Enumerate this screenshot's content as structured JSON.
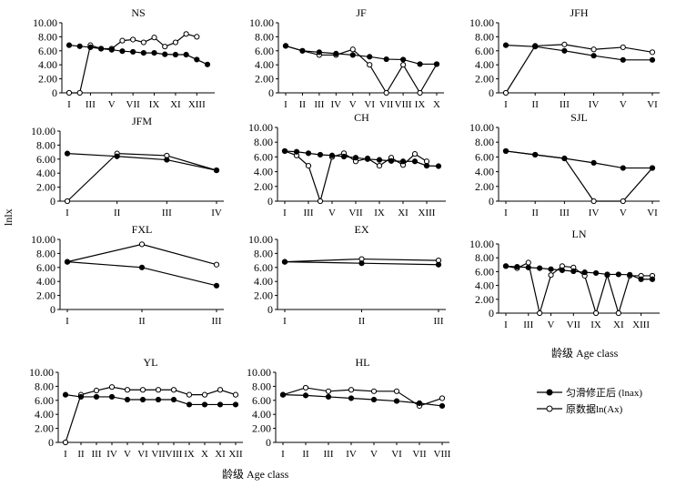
{
  "figure": {
    "ylabel": "lnlx",
    "xlabel": "龄级 Age class"
  },
  "legend": [
    {
      "key": "smoothed",
      "label": "匀滑修正后 (lnax)",
      "color": "#000000",
      "marker": "filled"
    },
    {
      "key": "raw",
      "label": "原数据ln(Ax)",
      "color": "#000000",
      "marker": "open"
    }
  ],
  "chart_data": [
    {
      "type": "line",
      "title": "NS",
      "ylim": [
        0,
        10
      ],
      "yticks": [
        "0",
        "2.00",
        "4.00",
        "6.00",
        "8.00",
        "10.00"
      ],
      "tick_labels": [
        "I",
        "III",
        "V",
        "VII",
        "IX",
        "XI",
        "XIII"
      ],
      "tick_positions": [
        1,
        3,
        5,
        7,
        9,
        11,
        13
      ],
      "x": [
        1,
        2,
        3,
        4,
        5,
        6,
        7,
        8,
        9,
        10,
        11,
        12,
        13,
        14
      ],
      "series": [
        {
          "name": "匀滑修正后 (lnax)",
          "values": [
            6.8,
            6.65,
            6.5,
            6.3,
            6.15,
            5.95,
            5.85,
            5.7,
            5.7,
            5.5,
            5.45,
            5.45,
            4.75,
            4.05
          ]
        },
        {
          "name": "原数据ln(Ax)",
          "values": [
            0,
            0,
            6.8,
            6.3,
            6.3,
            7.45,
            7.6,
            7.2,
            7.9,
            6.6,
            7.2,
            8.4,
            8.0,
            null
          ]
        }
      ]
    },
    {
      "type": "line",
      "title": "JF",
      "ylim": [
        0,
        10
      ],
      "yticks": [
        "0",
        "2.00",
        "4.00",
        "6.00",
        "8.00",
        "10.00"
      ],
      "tick_labels": [
        "I",
        "II",
        "III",
        "IV",
        "V",
        "VI",
        "VII",
        "VIII",
        "IX",
        "X"
      ],
      "tick_positions": [
        1,
        2,
        3,
        4,
        5,
        6,
        7,
        8,
        9,
        10
      ],
      "x": [
        1,
        2,
        3,
        4,
        5,
        6,
        7,
        8,
        9,
        10
      ],
      "series": [
        {
          "name": "匀滑修正后 (lnax)",
          "values": [
            6.7,
            6.0,
            5.8,
            5.6,
            5.4,
            5.15,
            4.8,
            4.75,
            4.1,
            4.1
          ]
        },
        {
          "name": "原数据ln(Ax)",
          "values": [
            6.7,
            6.0,
            5.4,
            5.4,
            6.2,
            4.0,
            0,
            4.0,
            0,
            4.1
          ]
        }
      ]
    },
    {
      "type": "line",
      "title": "JFH",
      "ylim": [
        0,
        10
      ],
      "yticks": [
        "0",
        "2.00",
        "4.00",
        "6.00",
        "8.00",
        "10.00"
      ],
      "tick_labels": [
        "I",
        "II",
        "III",
        "IV",
        "V",
        "VI"
      ],
      "tick_positions": [
        1,
        2,
        3,
        4,
        5,
        6
      ],
      "x": [
        1,
        2,
        3,
        4,
        5,
        6
      ],
      "series": [
        {
          "name": "匀滑修正后 (lnax)",
          "values": [
            6.8,
            6.6,
            6.0,
            5.3,
            4.7,
            4.7
          ]
        },
        {
          "name": "原数据ln(Ax)",
          "values": [
            0,
            6.7,
            6.9,
            6.2,
            6.5,
            5.8
          ]
        }
      ]
    },
    {
      "type": "line",
      "title": "JFM",
      "ylim": [
        0,
        10
      ],
      "yticks": [
        "0",
        "2.00",
        "4.00",
        "6.00",
        "8.00",
        "10.00"
      ],
      "tick_labels": [
        "I",
        "II",
        "III",
        "IV"
      ],
      "tick_positions": [
        1,
        2,
        3,
        4
      ],
      "x": [
        1,
        2,
        3,
        4
      ],
      "series": [
        {
          "name": "匀滑修正后 (lnax)",
          "values": [
            6.8,
            6.4,
            5.9,
            4.4
          ]
        },
        {
          "name": "原数据ln(Ax)",
          "values": [
            0,
            6.8,
            6.5,
            4.4
          ]
        }
      ]
    },
    {
      "type": "line",
      "title": "CH",
      "ylim": [
        0,
        10
      ],
      "yticks": [
        "0",
        "2.00",
        "4.00",
        "6.00",
        "8.00",
        "10.00"
      ],
      "tick_labels": [
        "I",
        "III",
        "V",
        "VII",
        "IX",
        "XI",
        "XIII"
      ],
      "tick_positions": [
        1,
        3,
        5,
        7,
        9,
        11,
        13
      ],
      "x": [
        1,
        2,
        3,
        4,
        5,
        6,
        7,
        8,
        9,
        10,
        11,
        12,
        13,
        14
      ],
      "series": [
        {
          "name": "匀滑修正后 (lnax)",
          "values": [
            6.8,
            6.7,
            6.5,
            6.3,
            6.2,
            6.05,
            5.9,
            5.7,
            5.6,
            5.45,
            5.4,
            5.4,
            4.8,
            4.75
          ]
        },
        {
          "name": "原数据ln(Ax)",
          "values": [
            6.8,
            6.2,
            4.8,
            0,
            6.0,
            6.5,
            5.4,
            5.8,
            4.8,
            5.9,
            4.9,
            6.4,
            5.4,
            null
          ]
        }
      ]
    },
    {
      "type": "line",
      "title": "SJL",
      "ylim": [
        0,
        10
      ],
      "yticks": [
        "0",
        "2.00",
        "4.00",
        "6.00",
        "8.00",
        "10.00"
      ],
      "tick_labels": [
        "I",
        "II",
        "III",
        "IV",
        "V",
        "VI"
      ],
      "tick_positions": [
        1,
        2,
        3,
        4,
        5,
        6
      ],
      "x": [
        1,
        2,
        3,
        4,
        5,
        6
      ],
      "series": [
        {
          "name": "匀滑修正后 (lnax)",
          "values": [
            6.8,
            6.3,
            5.8,
            5.2,
            4.5,
            4.5
          ]
        },
        {
          "name": "原数据ln(Ax)",
          "values": [
            6.8,
            6.3,
            5.8,
            0,
            0,
            4.5
          ]
        }
      ]
    },
    {
      "type": "line",
      "title": "FXL",
      "ylim": [
        0,
        10
      ],
      "yticks": [
        "0",
        "2.00",
        "4.00",
        "6.00",
        "8.00",
        "10.00"
      ],
      "tick_labels": [
        "I",
        "II",
        "III"
      ],
      "tick_positions": [
        1,
        2,
        3
      ],
      "x": [
        1,
        2,
        3
      ],
      "series": [
        {
          "name": "匀滑修正后 (lnax)",
          "values": [
            6.8,
            6.0,
            3.4
          ]
        },
        {
          "name": "原数据ln(Ax)",
          "values": [
            6.8,
            9.3,
            6.4
          ]
        }
      ]
    },
    {
      "type": "line",
      "title": "EX",
      "ylim": [
        0,
        10
      ],
      "yticks": [
        "0",
        "2.00",
        "4.00",
        "6.00",
        "8.00",
        "10.00"
      ],
      "tick_labels": [
        "I",
        "II",
        "III"
      ],
      "tick_positions": [
        1,
        2,
        3
      ],
      "x": [
        1,
        2,
        3
      ],
      "series": [
        {
          "name": "匀滑修正后 (lnax)",
          "values": [
            6.8,
            6.6,
            6.4
          ]
        },
        {
          "name": "原数据ln(Ax)",
          "values": [
            6.8,
            7.2,
            7.0
          ]
        }
      ]
    },
    {
      "type": "line",
      "title": "LN",
      "ylim": [
        0,
        10
      ],
      "yticks": [
        "0",
        "2.00",
        "4.00",
        "6.00",
        "8.00",
        "10.00"
      ],
      "tick_labels": [
        "I",
        "III",
        "V",
        "VII",
        "IX",
        "XI",
        "XIII"
      ],
      "tick_positions": [
        1,
        3,
        5,
        7,
        9,
        11,
        13
      ],
      "x": [
        1,
        2,
        3,
        4,
        5,
        6,
        7,
        8,
        9,
        10,
        11,
        12,
        13,
        14
      ],
      "series": [
        {
          "name": "匀滑修正后 (lnax)",
          "values": [
            6.8,
            6.7,
            6.6,
            6.5,
            6.35,
            6.2,
            6.05,
            5.9,
            5.8,
            5.6,
            5.6,
            5.55,
            4.9,
            4.9
          ]
        },
        {
          "name": "原数据ln(Ax)",
          "values": [
            6.8,
            6.5,
            7.3,
            0,
            5.5,
            6.8,
            6.6,
            5.4,
            0,
            5.5,
            0,
            5.4,
            5.4,
            5.4
          ]
        }
      ]
    },
    {
      "type": "line",
      "title": "YL",
      "ylim": [
        0,
        10
      ],
      "yticks": [
        "0",
        "2.00",
        "4.00",
        "6.00",
        "8.00",
        "10.00"
      ],
      "tick_labels": [
        "I",
        "II",
        "III",
        "IV",
        "V",
        "VI",
        "VII",
        "VIII",
        "IX",
        "X",
        "XI",
        "XII"
      ],
      "tick_positions": [
        1,
        2,
        3,
        4,
        5,
        6,
        7,
        8,
        9,
        10,
        11,
        12
      ],
      "x": [
        1,
        2,
        3,
        4,
        5,
        6,
        7,
        8,
        9,
        10,
        11,
        12
      ],
      "series": [
        {
          "name": "匀滑修正后 (lnax)",
          "values": [
            6.8,
            6.5,
            6.5,
            6.5,
            6.1,
            6.1,
            6.1,
            6.1,
            5.4,
            5.4,
            5.4,
            5.4
          ]
        },
        {
          "name": "原数据ln(Ax)",
          "values": [
            0,
            6.8,
            7.4,
            7.9,
            7.5,
            7.5,
            7.5,
            7.5,
            6.8,
            6.8,
            7.5,
            6.8
          ]
        }
      ]
    },
    {
      "type": "line",
      "title": "HL",
      "ylim": [
        0,
        10
      ],
      "yticks": [
        "0",
        "2.00",
        "4.00",
        "6.00",
        "8.00",
        "10.00"
      ],
      "tick_labels": [
        "I",
        "II",
        "III",
        "IV",
        "V",
        "VI",
        "VII",
        "VIII"
      ],
      "tick_positions": [
        1,
        2,
        3,
        4,
        5,
        6,
        7,
        8
      ],
      "x": [
        1,
        2,
        3,
        4,
        5,
        6,
        7,
        8
      ],
      "series": [
        {
          "name": "匀滑修正后 (lnax)",
          "values": [
            6.8,
            6.7,
            6.5,
            6.3,
            6.1,
            5.9,
            5.6,
            5.2
          ]
        },
        {
          "name": "原数据ln(Ax)",
          "values": [
            6.8,
            7.8,
            7.3,
            7.5,
            7.3,
            7.3,
            5.2,
            6.3
          ]
        }
      ]
    }
  ]
}
